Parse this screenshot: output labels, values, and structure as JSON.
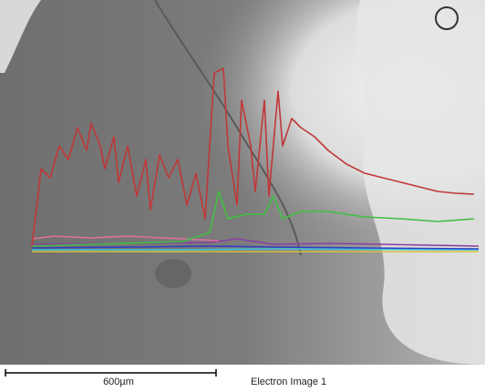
{
  "scale_bar": {
    "label": "600µm"
  },
  "image": {
    "caption": "Electron Image 1"
  }
}
